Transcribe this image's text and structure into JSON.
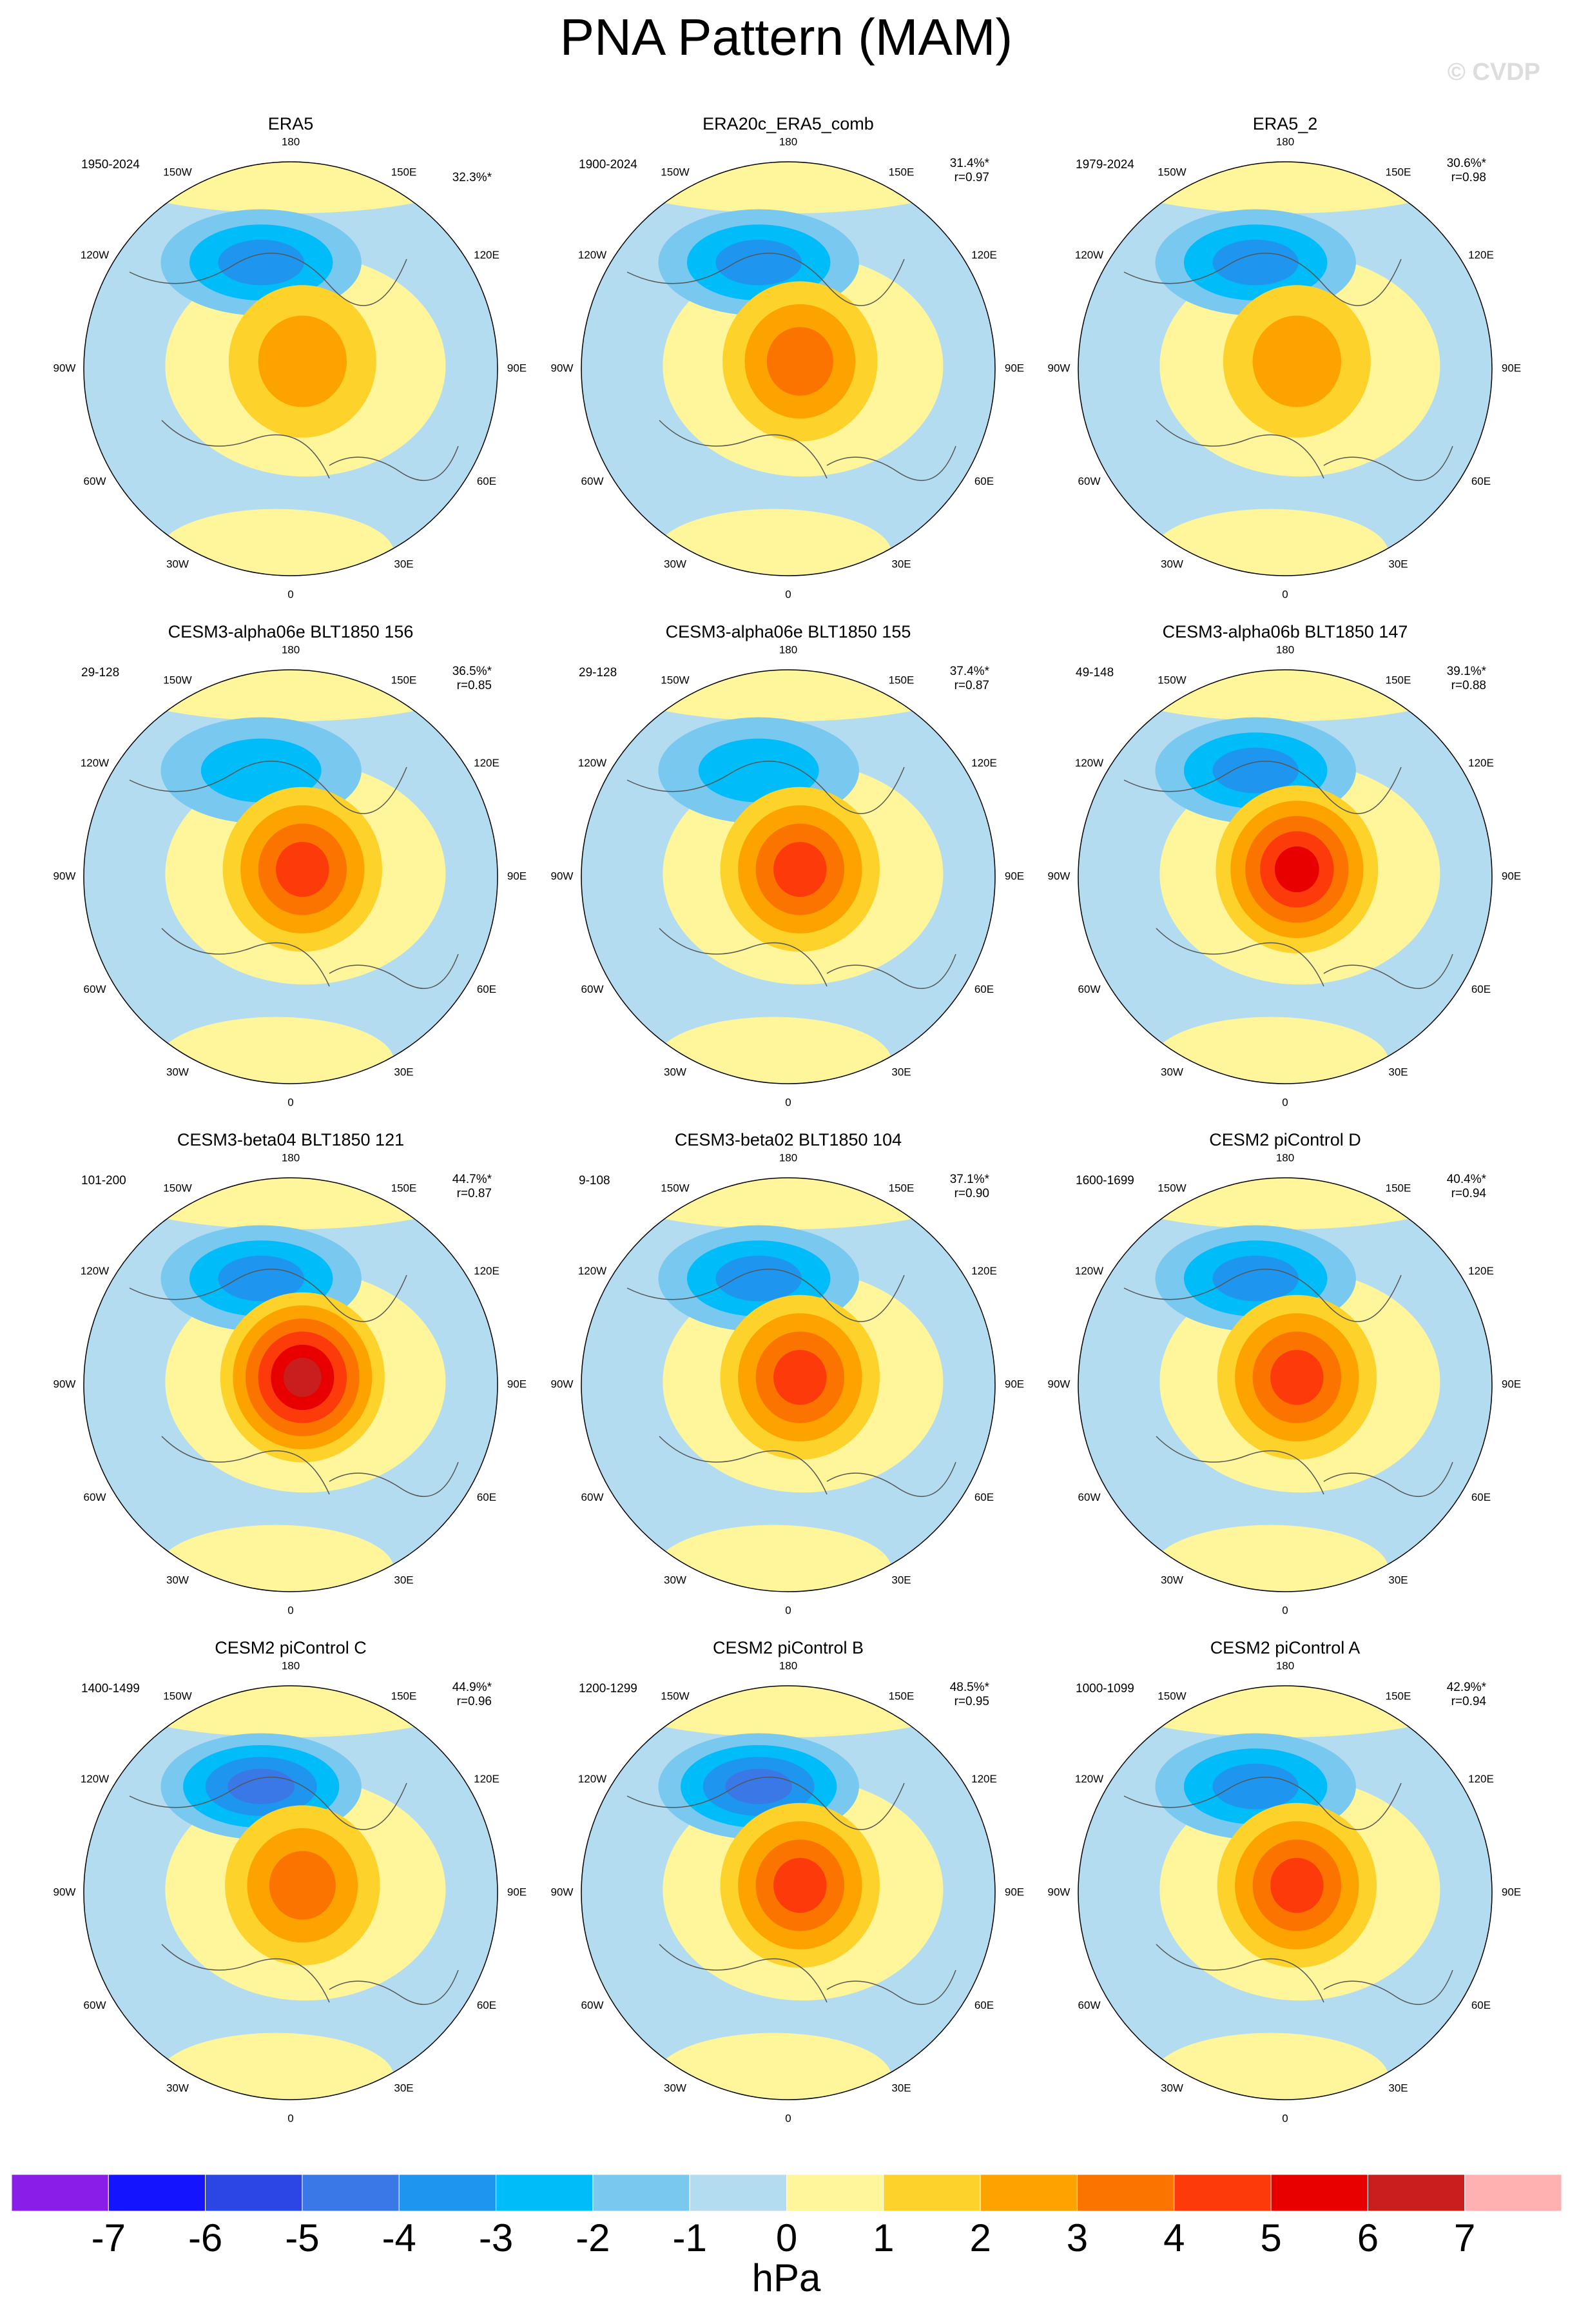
{
  "title": "PNA Pattern (MAM)",
  "watermark": "© CVDP",
  "lon_labels": [
    "180",
    "150E",
    "120E",
    "90E",
    "60E",
    "30E",
    "0",
    "30W",
    "60W",
    "90W",
    "120W",
    "150W"
  ],
  "panels": [
    {
      "title": "ERA5",
      "period": "1950-2024",
      "pct": "32.3%*"
    },
    {
      "title": "ERA20c_ERA5_comb",
      "period": "1900-2024",
      "pct": "31.4%*",
      "r": "r=0.97"
    },
    {
      "title": "ERA5_2",
      "period": "1979-2024",
      "pct": "30.6%*",
      "r": "r=0.98"
    },
    {
      "title": "CESM3-alpha06e BLT1850 156",
      "period": "29-128",
      "pct": "36.5%*",
      "r": "r=0.85"
    },
    {
      "title": "CESM3-alpha06e BLT1850 155",
      "period": "29-128",
      "pct": "37.4%*",
      "r": "r=0.87"
    },
    {
      "title": "CESM3-alpha06b BLT1850 147",
      "period": "49-148",
      "pct": "39.1%*",
      "r": "r=0.88"
    },
    {
      "title": "CESM3-beta04 BLT1850 121",
      "period": "101-200",
      "pct": "44.7%*",
      "r": "r=0.87"
    },
    {
      "title": "CESM3-beta02 BLT1850 104",
      "period": "9-108",
      "pct": "37.1%*",
      "r": "r=0.90"
    },
    {
      "title": "CESM2 piControl D",
      "period": "1600-1699",
      "pct": "40.4%*",
      "r": "r=0.94"
    },
    {
      "title": "CESM2 piControl C",
      "period": "1400-1499",
      "pct": "44.9%*",
      "r": "r=0.96"
    },
    {
      "title": "CESM2 piControl B",
      "period": "1200-1299",
      "pct": "48.5%*",
      "r": "r=0.95"
    },
    {
      "title": "CESM2 piControl A",
      "period": "1000-1099",
      "pct": "42.9%*",
      "r": "r=0.94"
    }
  ],
  "colorbar": {
    "label": "hPa",
    "colors": [
      "#8a1ee8",
      "#1414ff",
      "#2c46e6",
      "#3a78e8",
      "#1e96f0",
      "#00bcf8",
      "#78c8f0",
      "#b4dcf0",
      "#fff59a",
      "#fdd32b",
      "#fca300",
      "#fc7400",
      "#fc3a0a",
      "#e80000",
      "#c81e1e",
      "#ffb0b0"
    ],
    "ticks": [
      -7,
      -6,
      -5,
      -4,
      -3,
      -2,
      -1,
      0,
      1,
      2,
      3,
      4,
      5,
      6,
      7
    ]
  }
}
